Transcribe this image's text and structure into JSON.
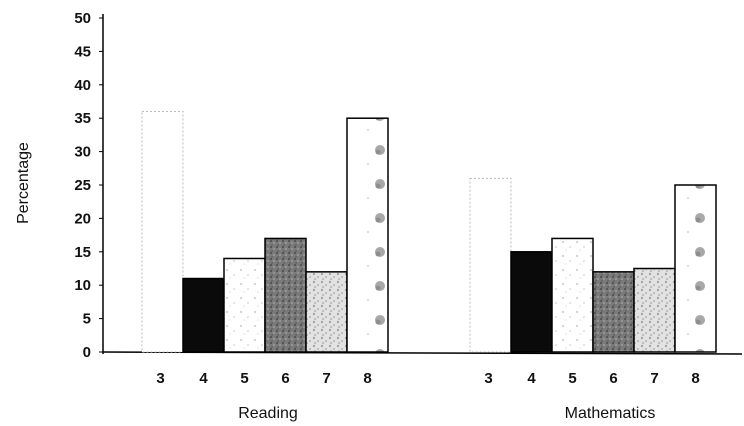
{
  "chart_data": {
    "type": "bar",
    "ylabel": "Percentage",
    "xlabel": "",
    "ylim": [
      0,
      50
    ],
    "yticks": [
      0,
      5,
      10,
      15,
      20,
      25,
      30,
      35,
      40,
      45,
      50
    ],
    "grid": false,
    "groups": [
      {
        "name": "Reading",
        "categories": [
          "3",
          "4",
          "5",
          "6",
          "7",
          "8"
        ],
        "values": [
          36,
          11,
          14,
          17,
          12,
          35
        ]
      },
      {
        "name": "Mathematics",
        "categories": [
          "3",
          "4",
          "5",
          "6",
          "7",
          "8"
        ],
        "values": [
          26,
          15,
          17,
          12,
          12.5,
          25
        ]
      }
    ],
    "bar_styles": [
      {
        "category": "3",
        "fill": "#ffffff",
        "stroke": "#bbbbbb",
        "pattern": "none",
        "dashed": true
      },
      {
        "category": "4",
        "fill": "#0a0a0a",
        "stroke": "#000000",
        "pattern": "none",
        "dashed": false
      },
      {
        "category": "5",
        "fill": "#ffffff",
        "stroke": "#000000",
        "pattern": "light-speckle",
        "dashed": false
      },
      {
        "category": "6",
        "fill": "#777777",
        "stroke": "#000000",
        "pattern": "dark-stipple",
        "dashed": false
      },
      {
        "category": "7",
        "fill": "#d8d8d8",
        "stroke": "#000000",
        "pattern": "medium-speckle",
        "dashed": false
      },
      {
        "category": "8",
        "fill": "#ffffff",
        "stroke": "#000000",
        "pattern": "spots",
        "dashed": false
      }
    ]
  }
}
